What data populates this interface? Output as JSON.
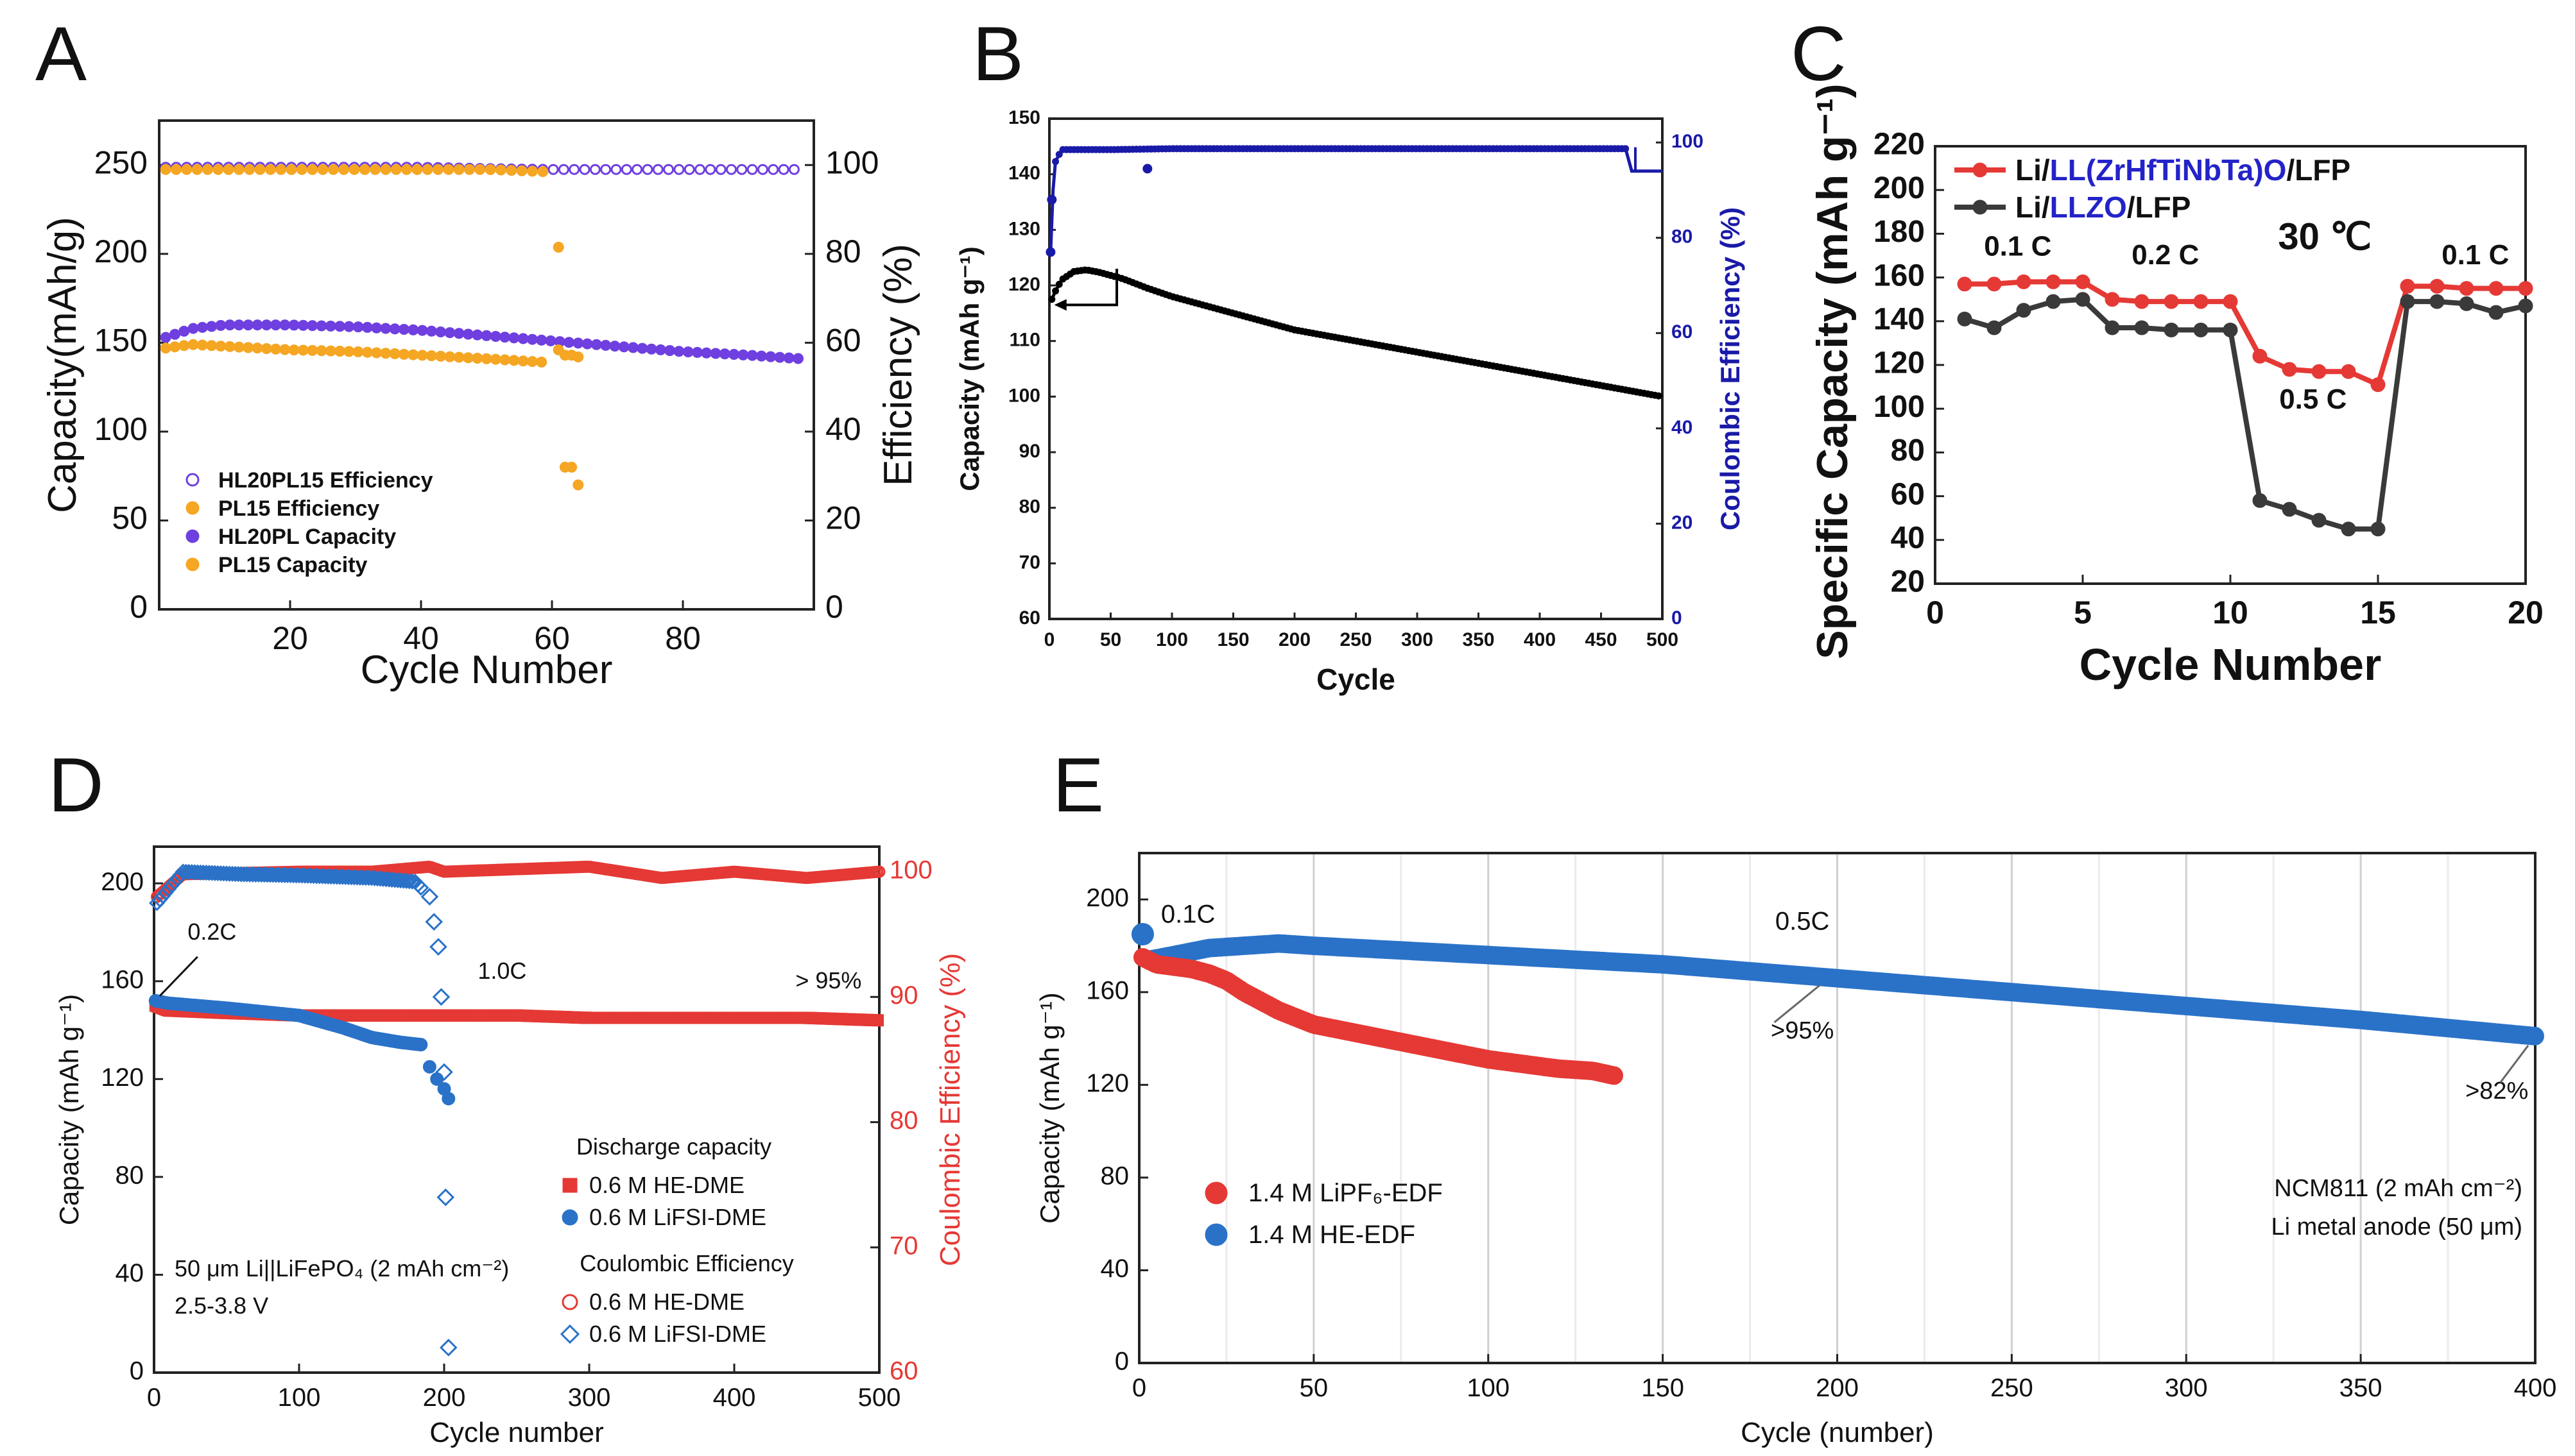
{
  "colors": {
    "purple": "#6f3fe0",
    "orange": "#f5a623",
    "navy": "#1a1aa8",
    "red": "#e53935",
    "dark": "#3a3a3a",
    "blue": "#2a72c8",
    "blue_text": "#2323c8"
  },
  "chart_data": [
    {
      "panel": "A",
      "type": "scatter",
      "xlabel": "Cycle Number",
      "ylabel": "Capacity(mAh/g)",
      "y2label": "Efficiency (%)",
      "xlim": [
        0,
        100
      ],
      "ylim": [
        0,
        275
      ],
      "y2lim": [
        0,
        110
      ],
      "xticks": [
        "20",
        "40",
        "60",
        "80"
      ],
      "yticks": [
        "0",
        "50",
        "100",
        "150",
        "200",
        "250"
      ],
      "y2ticks": [
        "0",
        "20",
        "40",
        "60",
        "80",
        "100"
      ],
      "legend": [
        "HL20PL15 Efficiency",
        "PL15 Efficiency",
        "HL20PL Capacity",
        "PL15 Capacity"
      ],
      "series": [
        {
          "name": "HL20PL15 Efficiency",
          "axis": "right",
          "style": "open-circle",
          "color": "purple",
          "x": [
            1,
            10,
            20,
            30,
            40,
            50,
            60,
            70,
            80,
            90,
            98
          ],
          "y": [
            99.5,
            99.5,
            99.5,
            99.5,
            99.5,
            99.2,
            99.0,
            99.0,
            99.0,
            99.0,
            99.0
          ]
        },
        {
          "name": "PL15 Efficiency",
          "axis": "right",
          "style": "filled-circle",
          "color": "orange",
          "x": [
            1,
            10,
            20,
            30,
            40,
            50,
            59,
            61,
            62,
            63,
            64
          ],
          "y": [
            99.0,
            99.0,
            99.0,
            99.0,
            99.0,
            99.0,
            98.5,
            81.5,
            32.0,
            32.0,
            28.0
          ]
        },
        {
          "name": "HL20PL Capacity",
          "axis": "left",
          "style": "filled-circle",
          "color": "purple",
          "x": [
            1,
            5,
            10,
            20,
            30,
            40,
            50,
            60,
            70,
            80,
            90,
            98
          ],
          "y": [
            153,
            158,
            160,
            160,
            159,
            157,
            154,
            151,
            148,
            145,
            143,
            141
          ]
        },
        {
          "name": "PL15 Capacity",
          "axis": "left",
          "style": "filled-circle",
          "color": "orange",
          "x": [
            1,
            5,
            10,
            20,
            30,
            40,
            50,
            59,
            61,
            62,
            63,
            64
          ],
          "y": [
            147,
            149,
            148,
            146,
            145,
            143,
            141,
            139,
            146,
            143,
            143,
            142
          ]
        }
      ]
    },
    {
      "panel": "B",
      "type": "line",
      "xlabel": "Cycle",
      "ylabel": "Capacity (mAh g⁻¹)",
      "y2label": "Coulombic Efficiency (%)",
      "xlim": [
        0,
        500
      ],
      "ylim": [
        60,
        150
      ],
      "y2lim": [
        0,
        105
      ],
      "xticks": [
        "0",
        "50",
        "100",
        "150",
        "200",
        "250",
        "300",
        "350",
        "400",
        "450",
        "500"
      ],
      "yticks": [
        "60",
        "70",
        "80",
        "90",
        "100",
        "110",
        "120",
        "130",
        "140",
        "150"
      ],
      "y2ticks": [
        "0",
        "20",
        "40",
        "60",
        "80",
        "100"
      ],
      "series": [
        {
          "name": "Capacity",
          "axis": "left",
          "color": "#000000",
          "x": [
            1,
            5,
            10,
            20,
            30,
            40,
            60,
            80,
            100,
            150,
            200,
            250,
            300,
            350,
            400,
            450,
            500
          ],
          "y": [
            117,
            119,
            121,
            122.5,
            122.8,
            122.4,
            121.2,
            119.5,
            118,
            115,
            112,
            110,
            108,
            106,
            104,
            102,
            100
          ]
        },
        {
          "name": "Coulombic Efficiency",
          "axis": "right",
          "color": "navy",
          "x": [
            1,
            3,
            5,
            10,
            50,
            100,
            200,
            300,
            400,
            470,
            475,
            480,
            500
          ],
          "y": [
            77,
            90,
            96,
            98.5,
            98.5,
            98.7,
            98.7,
            98.7,
            98.7,
            98.7,
            94,
            94,
            94
          ]
        }
      ]
    },
    {
      "panel": "C",
      "type": "line",
      "xlabel": "Cycle Number",
      "ylabel": "Specific Capacity (mAh g⁻¹)",
      "xlim": [
        0,
        20
      ],
      "ylim": [
        20,
        220
      ],
      "xticks": [
        "0",
        "5",
        "10",
        "15",
        "20"
      ],
      "yticks": [
        "20",
        "40",
        "60",
        "80",
        "100",
        "120",
        "140",
        "160",
        "180",
        "200",
        "220"
      ],
      "temperature": "30 ℃",
      "rates": [
        "0.1 C",
        "0.2 C",
        "0.5 C",
        "0.1 C"
      ],
      "legend": [
        {
          "pre": "Li/",
          "blue": "LL(ZrHfTiNbTa)O",
          "post": "/LFP"
        },
        {
          "pre": "Li/",
          "blue": "LLZO",
          "post": "/LFP"
        }
      ],
      "series": [
        {
          "name": "Li/LL(ZrHfTiNbTa)O/LFP",
          "color": "red",
          "x": [
            1,
            2,
            3,
            4,
            5,
            6,
            7,
            8,
            9,
            10,
            11,
            12,
            13,
            14,
            15,
            16,
            17,
            18,
            19,
            20
          ],
          "y": [
            157,
            157,
            158,
            158,
            158,
            150,
            149,
            149,
            149,
            149,
            124,
            118,
            117,
            117,
            111,
            156,
            156,
            155,
            155,
            155
          ]
        },
        {
          "name": "Li/LLZO/LFP",
          "color": "dark",
          "x": [
            1,
            2,
            3,
            4,
            5,
            6,
            7,
            8,
            9,
            10,
            11,
            12,
            13,
            14,
            15,
            16,
            17,
            18,
            19,
            20
          ],
          "y": [
            141,
            137,
            145,
            149,
            150,
            137,
            137,
            136,
            136,
            136,
            58,
            54,
            49,
            45,
            45,
            149,
            149,
            148,
            144,
            147
          ]
        }
      ]
    },
    {
      "panel": "D",
      "type": "scatter",
      "xlabel": "Cycle number",
      "ylabel": "Capacity (mAh g⁻¹)",
      "y2label": "Coulombic Efficiency (%)",
      "xlim": [
        0,
        500
      ],
      "ylim": [
        0,
        215
      ],
      "y2lim": [
        60,
        102
      ],
      "xticks": [
        "0",
        "100",
        "200",
        "300",
        "400",
        "500"
      ],
      "yticks": [
        "0",
        "40",
        "80",
        "120",
        "160",
        "200"
      ],
      "y2ticks": [
        "60",
        "70",
        "80",
        "90",
        "100"
      ],
      "annotations": [
        "0.2C",
        "1.0C",
        "> 95%"
      ],
      "legend_discharge_title": "Discharge capacity",
      "legend_ce_title": "Coulombic Efficiency",
      "legend_items": [
        "0.6 M HE-DME",
        "0.6 M LiFSI-DME",
        "0.6 M HE-DME",
        "0.6 M LiFSI-DME"
      ],
      "cell_info": "50 μm Li||LiFePO₄ (2 mAh cm⁻²)",
      "voltage": "2.5-3.8 V",
      "series": [
        {
          "name": "0.6 M HE-DME discharge",
          "axis": "left",
          "style": "filled-square",
          "color": "red",
          "x": [
            1,
            10,
            50,
            100,
            150,
            200,
            250,
            300,
            350,
            400,
            450,
            500
          ],
          "y": [
            150,
            148,
            147,
            146,
            146,
            146,
            146,
            145,
            145,
            145,
            145,
            144
          ]
        },
        {
          "name": "0.6 M LiFSI-DME discharge",
          "axis": "left",
          "style": "filled-circle",
          "color": "blue",
          "x": [
            1,
            10,
            50,
            100,
            130,
            150,
            170,
            185,
            190,
            195,
            200,
            203
          ],
          "y": [
            152,
            151,
            149,
            146,
            141,
            137,
            135,
            134,
            125,
            120,
            116,
            112
          ]
        },
        {
          "name": "0.6 M HE-DME CE",
          "axis": "right",
          "style": "open-circle",
          "color": "red",
          "x": [
            2,
            20,
            100,
            150,
            190,
            200,
            300,
            350,
            400,
            450,
            500
          ],
          "y": [
            98,
            99.8,
            100,
            100,
            100.4,
            100,
            100.4,
            99.5,
            100,
            99.5,
            100
          ]
        },
        {
          "name": "0.6 M LiFSI-DME CE",
          "axis": "right",
          "style": "open-diamond",
          "color": "blue",
          "x": [
            2,
            20,
            60,
            100,
            150,
            180,
            190,
            193,
            196,
            198,
            200,
            201,
            203
          ],
          "y": [
            97.5,
            100,
            99.8,
            99.7,
            99.5,
            99.2,
            98,
            96,
            94,
            90,
            84,
            74,
            62
          ]
        }
      ]
    },
    {
      "panel": "E",
      "type": "scatter",
      "xlabel": "Cycle (number)",
      "ylabel": "Capacity (mAh g⁻¹)",
      "xlim": [
        0,
        400
      ],
      "ylim": [
        0,
        220
      ],
      "xticks": [
        "0",
        "50",
        "100",
        "150",
        "200",
        "250",
        "300",
        "350",
        "400"
      ],
      "yticks": [
        "0",
        "40",
        "80",
        "120",
        "160",
        "200"
      ],
      "annotations": [
        "0.1C",
        "0.5C",
        ">95%",
        ">82%"
      ],
      "legend": [
        "1.4 M LiPF₆-EDF",
        "1.4 M HE-EDF"
      ],
      "cell_info_1": "NCM811 (2 mAh cm⁻²)",
      "cell_info_2": "Li metal anode (50 μm)",
      "series": [
        {
          "name": "1.4 M LiPF6-EDF",
          "color": "red",
          "x": [
            1,
            5,
            10,
            15,
            20,
            25,
            30,
            40,
            50,
            60,
            70,
            80,
            90,
            100,
            110,
            120,
            130,
            136
          ],
          "y": [
            175,
            172,
            171,
            170,
            168,
            165,
            160,
            152,
            146,
            143,
            140,
            137,
            134,
            131,
            129,
            127,
            126,
            124
          ]
        },
        {
          "name": "1.4 M HE-EDF",
          "color": "blue",
          "x": [
            1,
            3,
            10,
            20,
            30,
            40,
            50,
            75,
            100,
            150,
            200,
            250,
            300,
            350,
            400
          ],
          "y": [
            185,
            174,
            176,
            179,
            180,
            181,
            180,
            178,
            176,
            172,
            166,
            160,
            154,
            148,
            141
          ]
        }
      ]
    }
  ]
}
